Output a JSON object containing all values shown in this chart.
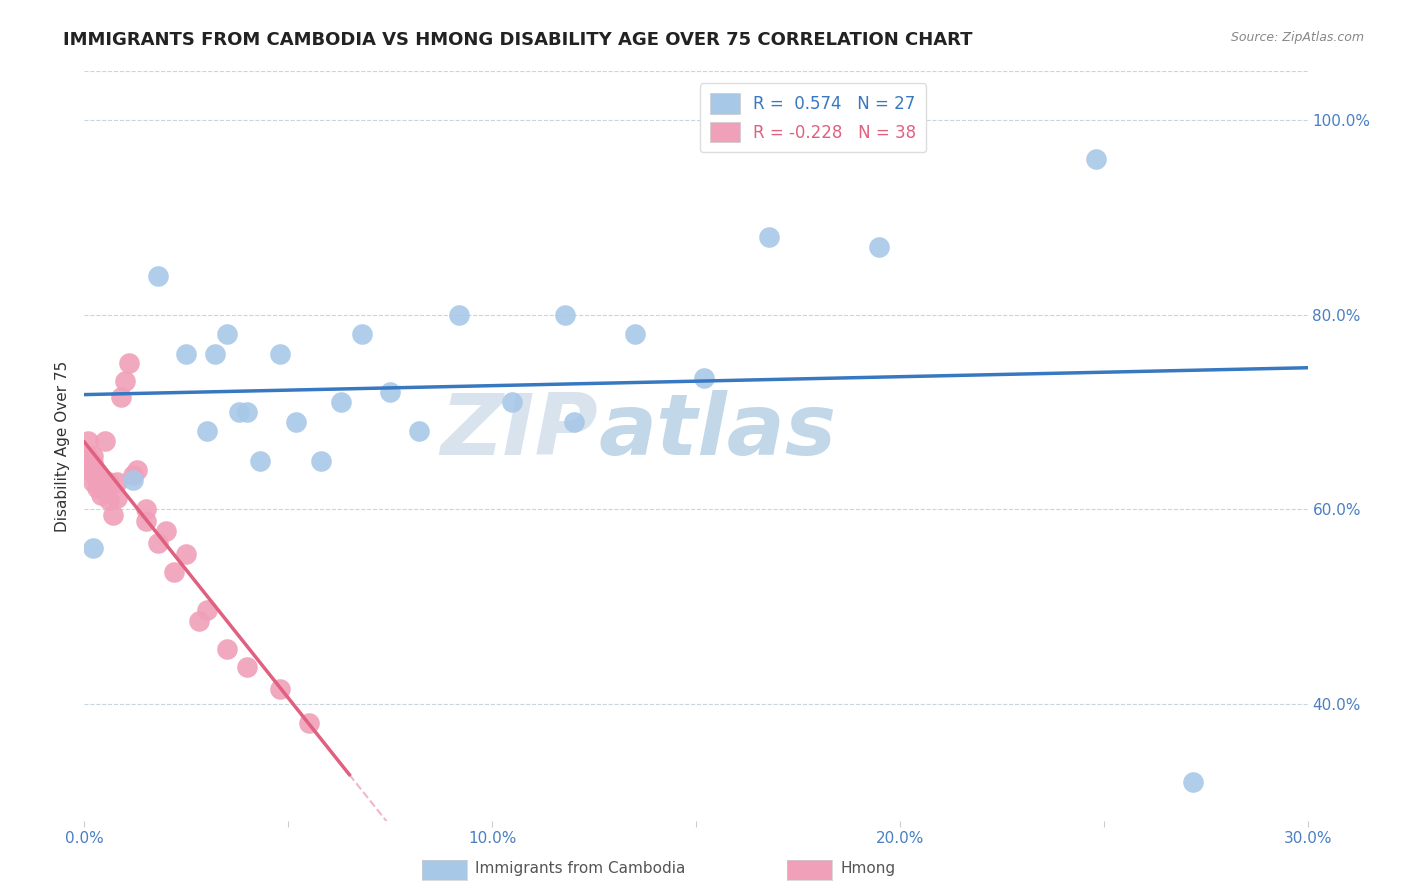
{
  "title": "IMMIGRANTS FROM CAMBODIA VS HMONG DISABILITY AGE OVER 75 CORRELATION CHART",
  "source": "Source: ZipAtlas.com",
  "ylabel": "Disability Age Over 75",
  "xlim": [
    0.0,
    0.3
  ],
  "ylim": [
    0.28,
    1.05
  ],
  "xticks": [
    0.0,
    0.05,
    0.1,
    0.15,
    0.2,
    0.25,
    0.3
  ],
  "xticklabels": [
    "0.0%",
    "",
    "10.0%",
    "",
    "20.0%",
    "",
    "30.0%"
  ],
  "yticks_right": [
    0.4,
    0.6,
    0.8,
    1.0
  ],
  "yticklabels_right": [
    "40.0%",
    "60.0%",
    "80.0%",
    "100.0%"
  ],
  "grid_yticks": [
    0.4,
    0.6,
    0.8,
    1.0
  ],
  "cambodia_R": 0.574,
  "cambodia_N": 27,
  "hmong_R": -0.228,
  "hmong_N": 38,
  "cambodia_color": "#a8c8e8",
  "hmong_color": "#f0a0b8",
  "trend_cambodia_color": "#3878c0",
  "trend_hmong_color": "#e06080",
  "watermark": "ZIPatlas",
  "watermark_color": "#c5d8ea",
  "background_color": "#ffffff",
  "grid_color": "#c8d4de",
  "title_fontsize": 13,
  "axis_label_fontsize": 11,
  "tick_fontsize": 11,
  "legend_fontsize": 12,
  "cambodia_x": [
    0.002,
    0.012,
    0.018,
    0.025,
    0.03,
    0.032,
    0.035,
    0.038,
    0.04,
    0.043,
    0.048,
    0.052,
    0.058,
    0.063,
    0.068,
    0.075,
    0.082,
    0.092,
    0.105,
    0.118,
    0.12,
    0.135,
    0.152,
    0.168,
    0.195,
    0.248,
    0.272
  ],
  "cambodia_y": [
    0.56,
    0.63,
    0.84,
    0.76,
    0.68,
    0.76,
    0.78,
    0.7,
    0.7,
    0.65,
    0.76,
    0.69,
    0.65,
    0.71,
    0.78,
    0.72,
    0.68,
    0.8,
    0.71,
    0.8,
    0.69,
    0.78,
    0.735,
    0.88,
    0.87,
    0.96,
    0.32
  ],
  "hmong_x": [
    0.001,
    0.001,
    0.001,
    0.001,
    0.002,
    0.002,
    0.002,
    0.002,
    0.003,
    0.003,
    0.003,
    0.004,
    0.004,
    0.005,
    0.005,
    0.005,
    0.006,
    0.006,
    0.007,
    0.008,
    0.008,
    0.009,
    0.01,
    0.011,
    0.012,
    0.013,
    0.015,
    0.015,
    0.018,
    0.02,
    0.022,
    0.025,
    0.028,
    0.03,
    0.035,
    0.04,
    0.048,
    0.055
  ],
  "hmong_y": [
    0.64,
    0.65,
    0.655,
    0.67,
    0.628,
    0.64,
    0.648,
    0.655,
    0.622,
    0.63,
    0.638,
    0.615,
    0.628,
    0.622,
    0.628,
    0.67,
    0.61,
    0.628,
    0.594,
    0.612,
    0.628,
    0.715,
    0.732,
    0.75,
    0.635,
    0.64,
    0.588,
    0.6,
    0.565,
    0.578,
    0.536,
    0.554,
    0.485,
    0.496,
    0.456,
    0.438,
    0.415,
    0.38
  ],
  "trend_solid_end": 0.065
}
